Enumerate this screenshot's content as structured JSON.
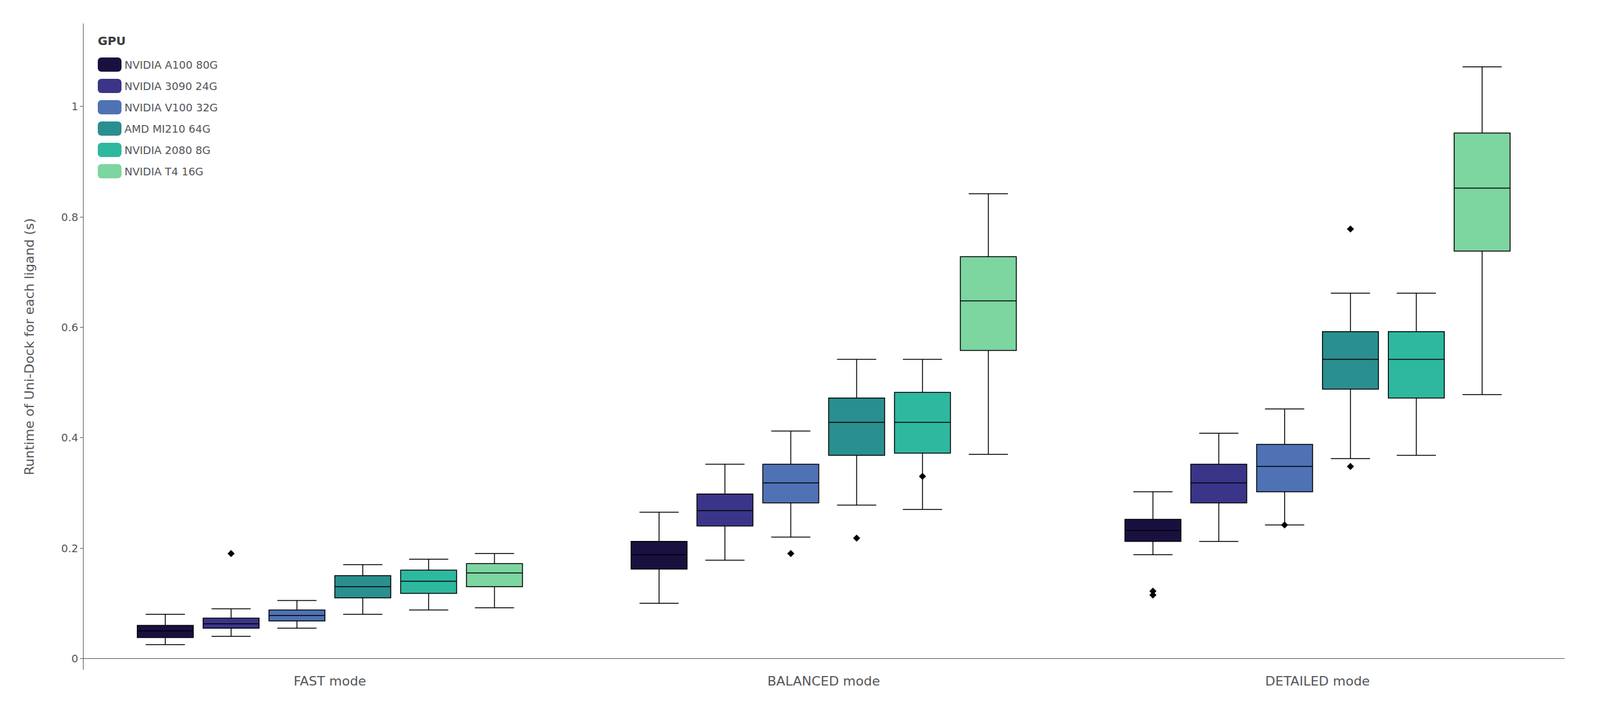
{
  "chart_data": {
    "type": "boxplot",
    "ylabel": "Runtime of Uni-Dock for each ligand (s)",
    "categories": [
      "FAST mode",
      "BALANCED mode",
      "DETAILED mode"
    ],
    "series": [
      {
        "name": "NVIDIA A100 80G",
        "color": "#1a1040",
        "values": [
          [
            0.025,
            0.038,
            0.05,
            0.06,
            0.08
          ],
          [
            0.1,
            0.162,
            0.188,
            0.212,
            0.265
          ],
          [
            0.188,
            0.212,
            0.232,
            0.252,
            0.302
          ]
        ],
        "fliers": [
          [],
          [],
          [
            0.115,
            0.122
          ]
        ]
      },
      {
        "name": "NVIDIA 3090 24G",
        "color": "#3b3589",
        "values": [
          [
            0.04,
            0.055,
            0.063,
            0.073,
            0.09
          ],
          [
            0.178,
            0.24,
            0.268,
            0.298,
            0.352
          ],
          [
            0.212,
            0.282,
            0.318,
            0.352,
            0.408
          ]
        ],
        "fliers": [
          [
            0.19
          ],
          [],
          []
        ]
      },
      {
        "name": "NVIDIA V100 32G",
        "color": "#4f72b5",
        "values": [
          [
            0.055,
            0.068,
            0.078,
            0.088,
            0.105
          ],
          [
            0.22,
            0.282,
            0.318,
            0.352,
            0.412
          ],
          [
            0.242,
            0.302,
            0.348,
            0.388,
            0.452
          ]
        ],
        "fliers": [
          [],
          [
            0.19
          ],
          [
            0.242
          ]
        ]
      },
      {
        "name": "AMD MI210 64G",
        "color": "#2a8f8f",
        "values": [
          [
            0.08,
            0.11,
            0.13,
            0.15,
            0.17
          ],
          [
            0.278,
            0.368,
            0.428,
            0.472,
            0.542
          ],
          [
            0.362,
            0.488,
            0.542,
            0.592,
            0.662
          ]
        ],
        "fliers": [
          [],
          [
            0.218
          ],
          [
            0.348,
            0.778
          ]
        ]
      },
      {
        "name": "NVIDIA 2080 8G",
        "color": "#2eb8a0",
        "values": [
          [
            0.088,
            0.118,
            0.14,
            0.16,
            0.18
          ],
          [
            0.27,
            0.372,
            0.428,
            0.482,
            0.542
          ],
          [
            0.368,
            0.472,
            0.542,
            0.592,
            0.662
          ]
        ],
        "fliers": [
          [],
          [
            0.33
          ],
          []
        ]
      },
      {
        "name": "NVIDIA T4 16G",
        "color": "#7dd5a0",
        "values": [
          [
            0.092,
            0.13,
            0.155,
            0.172,
            0.19
          ],
          [
            0.37,
            0.558,
            0.648,
            0.728,
            0.842
          ],
          [
            0.478,
            0.738,
            0.852,
            0.952,
            1.072
          ]
        ],
        "fliers": [
          [],
          [],
          []
        ]
      }
    ],
    "ylim": [
      -0.02,
      1.15
    ],
    "yticks": [
      0,
      0.2,
      0.4,
      0.6,
      0.8,
      1.0
    ],
    "grid": false,
    "legend": "upper left",
    "legend_title": "GPU",
    "marker": "diamond"
  }
}
